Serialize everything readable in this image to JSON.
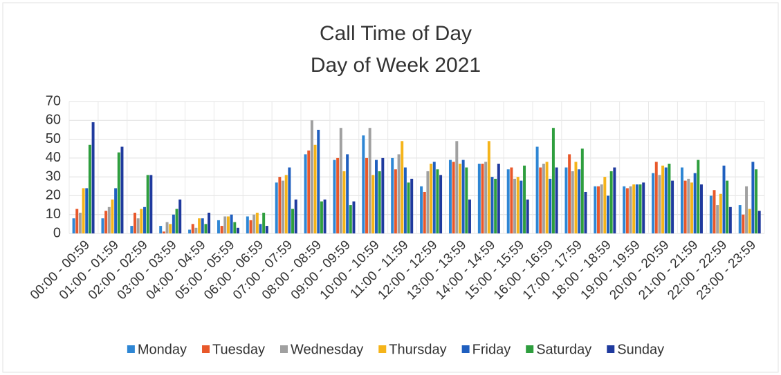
{
  "chart_data": {
    "type": "bar",
    "title": "Call Time of Day",
    "subtitle": "Day of Week 2021",
    "categories": [
      "00:00 - 00:59",
      "01:00 - 01:59",
      "02:00 - 02:59",
      "03:00 - 03:59",
      "04:00 - 04:59",
      "05:00 - 05:59",
      "06:00 - 06:59",
      "07:00 - 07:59",
      "08:00 - 08:59",
      "09:00 - 09:59",
      "10:00 - 10:59",
      "11:00 - 11:59",
      "12:00 - 12:59",
      "13:00 - 13:59",
      "14:00 - 14:59",
      "15:00 - 15:59",
      "16:00 - 16:59",
      "17:00 - 17:59",
      "18:00 - 18:59",
      "19:00 - 19:59",
      "20:00 - 20:59",
      "21:00 - 21:59",
      "22:00 - 22:59",
      "23:00 - 23:59"
    ],
    "series": [
      {
        "name": "Monday",
        "color": "#2e86d4",
        "values": [
          8,
          8,
          4,
          4,
          2,
          7,
          9,
          27,
          42,
          39,
          52,
          40,
          25,
          39,
          37,
          34,
          46,
          35,
          25,
          25,
          32,
          35,
          20,
          15
        ]
      },
      {
        "name": "Tuesday",
        "color": "#e8582a",
        "values": [
          13,
          12,
          11,
          1,
          5,
          4,
          7,
          30,
          44,
          40,
          40,
          34,
          22,
          38,
          37,
          35,
          35,
          42,
          25,
          24,
          38,
          28,
          23,
          10
        ]
      },
      {
        "name": "Wednesday",
        "color": "#a0a0a0",
        "values": [
          11,
          14,
          8,
          6,
          3,
          9,
          10,
          28,
          60,
          56,
          56,
          42,
          33,
          49,
          38,
          29,
          37,
          33,
          26,
          25,
          31,
          29,
          15,
          25
        ]
      },
      {
        "name": "Thursday",
        "color": "#f5b41a",
        "values": [
          24,
          18,
          13,
          5,
          8,
          9,
          11,
          31,
          47,
          33,
          31,
          49,
          37,
          37,
          49,
          30,
          38,
          38,
          30,
          26,
          36,
          27,
          21,
          13
        ]
      },
      {
        "name": "Friday",
        "color": "#1f5fbf",
        "values": [
          24,
          24,
          14,
          10,
          8,
          10,
          5,
          35,
          55,
          42,
          39,
          35,
          38,
          39,
          30,
          28,
          29,
          34,
          20,
          26,
          35,
          32,
          36,
          38
        ]
      },
      {
        "name": "Saturday",
        "color": "#2e9e3e",
        "values": [
          47,
          43,
          31,
          13,
          5,
          6,
          11,
          13,
          17,
          15,
          33,
          27,
          34,
          35,
          29,
          36,
          56,
          45,
          33,
          26,
          37,
          39,
          28,
          34
        ]
      },
      {
        "name": "Sunday",
        "color": "#1f3a9e",
        "values": [
          59,
          46,
          31,
          18,
          11,
          3,
          4,
          18,
          18,
          17,
          40,
          29,
          31,
          18,
          37,
          18,
          35,
          22,
          35,
          27,
          28,
          26,
          14,
          12
        ]
      }
    ],
    "ylim": [
      0,
      70
    ],
    "yticks": [
      0,
      10,
      20,
      30,
      40,
      50,
      60,
      70
    ],
    "grid": true,
    "legend": "bottom"
  }
}
